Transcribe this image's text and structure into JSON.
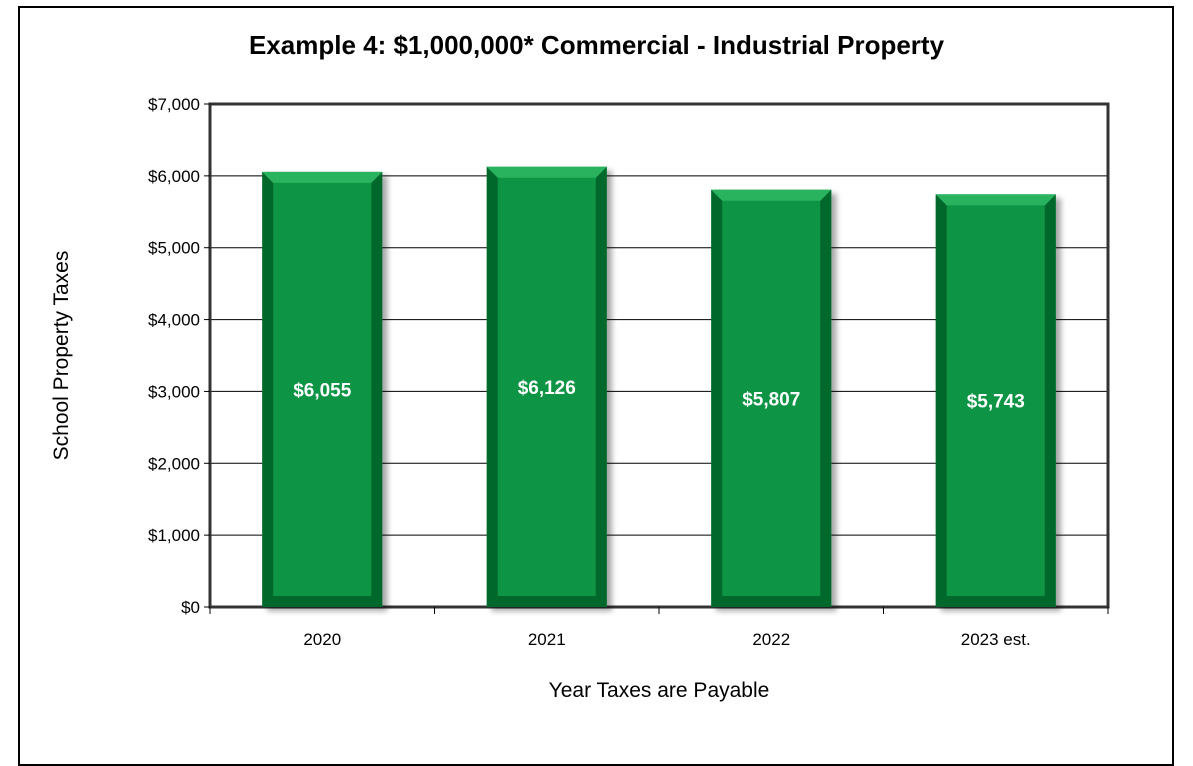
{
  "chart_data": {
    "type": "bar",
    "title": "Example 4:  $1,000,000* Commercial - Industrial Property",
    "xlabel": "Year Taxes are Payable",
    "ylabel": "School Property Taxes",
    "categories": [
      "2020",
      "2021",
      "2022",
      "2023 est."
    ],
    "values": [
      6055,
      6126,
      5807,
      5743
    ],
    "data_labels": [
      "$6,055",
      "$6,126",
      "$5,807",
      "$5,743"
    ],
    "ylim": [
      0,
      7000
    ],
    "yticks": [
      0,
      1000,
      2000,
      3000,
      4000,
      5000,
      6000,
      7000
    ],
    "ytick_labels": [
      "$0",
      "$1,000",
      "$2,000",
      "$3,000",
      "$4,000",
      "$5,000",
      "$6,000",
      "$7,000"
    ],
    "grid": true,
    "legend": "none",
    "colors": {
      "bar_face": "#0b9444",
      "bar_dark": "#06682c",
      "bar_light": "#2bb35e"
    }
  }
}
